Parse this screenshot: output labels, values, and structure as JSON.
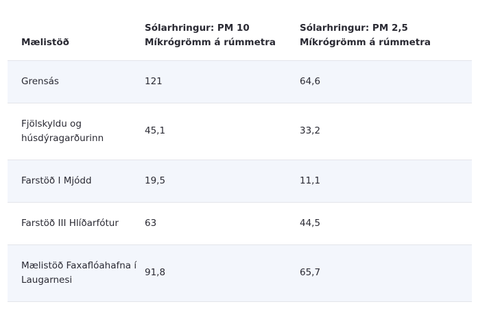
{
  "table": {
    "headers": [
      {
        "line1": "Mælistöð",
        "line2": ""
      },
      {
        "line1": "Sólarhringur: PM 10",
        "line2": "Míkrógrömm á rúmmetra"
      },
      {
        "line1": "Sólarhringur: PM 2,5",
        "line2": "Míkrógrömm á rúmmetra"
      }
    ],
    "rows": [
      {
        "station": "Grensás",
        "pm10": "121",
        "pm25": "64,6"
      },
      {
        "station": "Fjölskyldu og húsdýragarðurinn",
        "pm10": "45,1",
        "pm25": "33,2"
      },
      {
        "station": "Farstöð I Mjódd",
        "pm10": "19,5",
        "pm25": "11,1"
      },
      {
        "station": "Farstöð III Hlíðarfótur",
        "pm10": "63",
        "pm25": "44,5"
      },
      {
        "station": "Mælistöð Faxaflóahafna í Laugarnesi",
        "pm10": "91,8",
        "pm25": "65,7"
      }
    ]
  },
  "colors": {
    "row_shade": "#f3f6fc",
    "border": "#e3e4ea",
    "text": "#2a2a33"
  }
}
